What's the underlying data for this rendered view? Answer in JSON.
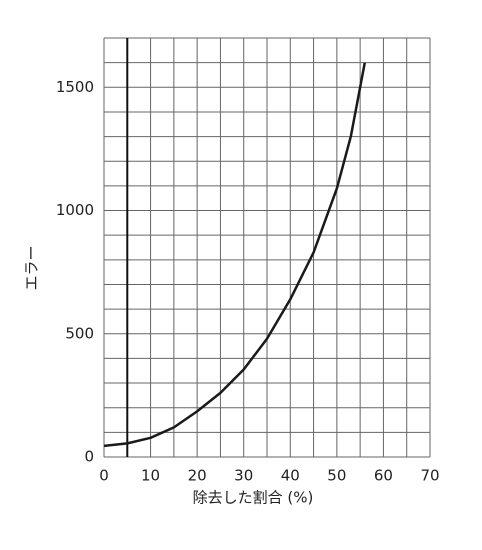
{
  "chart_data": {
    "type": "line",
    "x_label": "除去した割合 (%)",
    "y_label": "エラー",
    "series": [
      {
        "color": "#1a1a1a",
        "x": [
          0,
          5,
          10,
          15,
          20,
          25,
          30,
          35,
          40,
          45,
          50,
          53,
          56
        ],
        "values": [
          45,
          55,
          78,
          120,
          185,
          260,
          355,
          480,
          640,
          830,
          1090,
          1300,
          1600
        ]
      }
    ],
    "reference_x": 5,
    "xlim": [
      0,
      70
    ],
    "xticks": [
      0,
      10,
      20,
      30,
      40,
      50,
      60,
      70
    ],
    "ylim": [
      0,
      1700
    ],
    "yticks": [
      0,
      500,
      1000,
      1500
    ],
    "xgrid": [
      0,
      5,
      10,
      15,
      20,
      25,
      30,
      35,
      40,
      45,
      50,
      55,
      60,
      65,
      70
    ],
    "ygrid": [
      0,
      100,
      200,
      300,
      400,
      500,
      600,
      700,
      800,
      900,
      1000,
      1100,
      1200,
      1300,
      1400,
      1500,
      1600,
      1700
    ],
    "grid": true
  }
}
